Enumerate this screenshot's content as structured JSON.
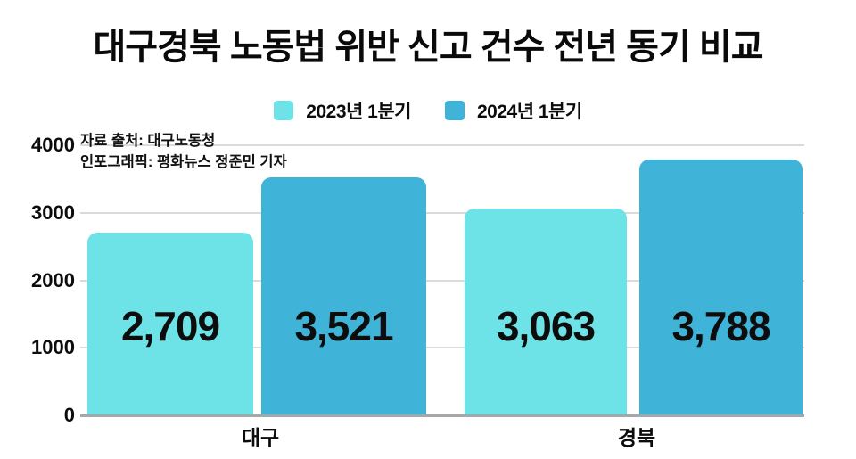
{
  "title": "대구경북 노동법 위반 신고 건수 전년 동기 비교",
  "source_note": {
    "line1": "자료 출처: 대구노동청",
    "line2": "인포그래픽: 평화뉴스 정준민 기자"
  },
  "colors": {
    "series_2023": "#6ee3e7",
    "series_2024": "#40b4d8",
    "gridline": "#dadada",
    "axisline": "#a7a7a7",
    "text": "#0c0c0c",
    "background": "#ffffff"
  },
  "chart_data": {
    "type": "bar",
    "categories": [
      "대구",
      "경북"
    ],
    "series": [
      {
        "name": "2023년 1분기",
        "color": "#6ee3e7",
        "values": [
          2709,
          3063
        ]
      },
      {
        "name": "2024년 1분기",
        "color": "#40b4d8",
        "values": [
          3521,
          3788
        ]
      }
    ],
    "value_labels": [
      [
        "2,709",
        "3,063"
      ],
      [
        "3,521",
        "3,788"
      ]
    ],
    "title": "대구경북 노동법 위반 신고 건수 전년 동기 비교",
    "xlabel": "",
    "ylabel": "",
    "ylim": [
      0,
      4000
    ],
    "yticks": [
      0,
      1000,
      2000,
      3000,
      4000
    ],
    "grid": true,
    "legend_position": "top"
  }
}
